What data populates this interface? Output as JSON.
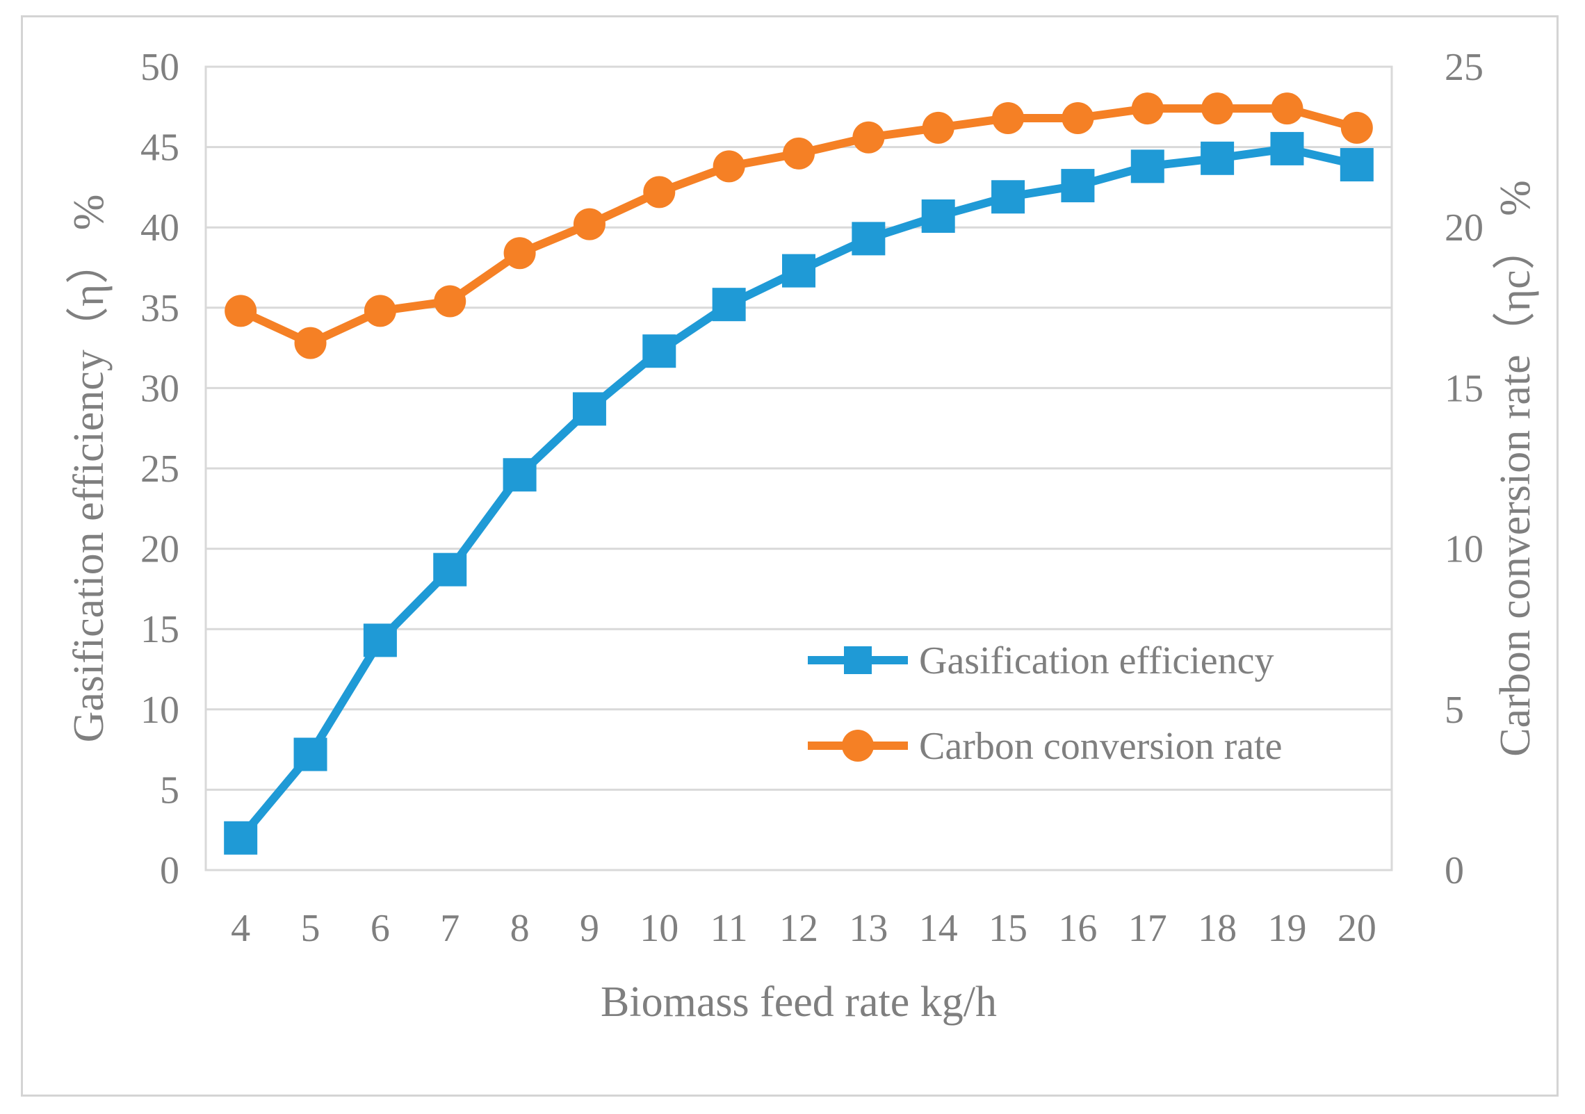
{
  "chart_data": {
    "type": "line",
    "title": "",
    "xlabel": "Biomass feed rate   kg/h",
    "ylabel_left": "Gasification efficiency（η）  %",
    "ylabel_right": "Carbon conversion rate（ηc）  %",
    "x": [
      4,
      5,
      6,
      7,
      8,
      9,
      10,
      11,
      12,
      13,
      14,
      15,
      16,
      17,
      18,
      19,
      20
    ],
    "ylim_left": [
      0,
      50
    ],
    "ylim_right": [
      0,
      25
    ],
    "yticks_left": [
      0,
      5,
      10,
      15,
      20,
      25,
      30,
      35,
      40,
      45,
      50
    ],
    "yticks_right": [
      0,
      5,
      10,
      15,
      20,
      25
    ],
    "grid": true,
    "legend_position": "lower-right",
    "series": [
      {
        "name": "Gasification efficiency",
        "axis": "left",
        "marker": "square",
        "color": "#1f9ad6",
        "values": [
          2.0,
          7.2,
          14.3,
          18.7,
          24.6,
          28.7,
          32.3,
          35.2,
          37.3,
          39.3,
          40.7,
          41.9,
          42.6,
          43.8,
          44.3,
          44.9,
          43.9
        ]
      },
      {
        "name": "Carbon conversion rate",
        "axis": "right",
        "marker": "circle",
        "color": "#f58025",
        "values": [
          17.4,
          16.4,
          17.4,
          17.7,
          19.2,
          20.1,
          21.1,
          21.9,
          22.3,
          22.8,
          23.1,
          23.4,
          23.4,
          23.7,
          23.7,
          23.7,
          23.1
        ]
      }
    ]
  }
}
